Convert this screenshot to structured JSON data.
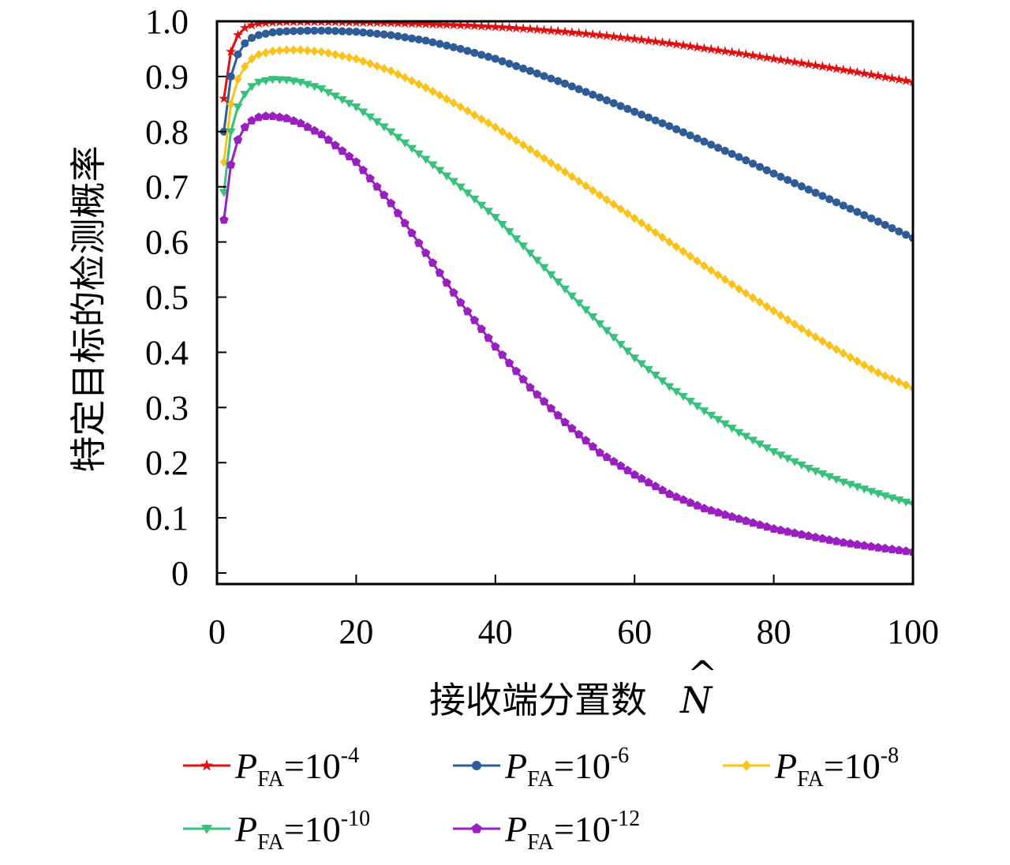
{
  "chart_data": {
    "type": "line",
    "xlabel": "接收端分置数",
    "xlabel_symbol": "N",
    "ylabel": "特定目标的检测概率",
    "xlim": [
      0,
      100
    ],
    "ylim": [
      -0.02,
      1.0
    ],
    "xticks": [
      0,
      20,
      40,
      60,
      80,
      100
    ],
    "xtick_labels": [
      "0",
      "20",
      "40",
      "60",
      "80",
      "100"
    ],
    "yticks": [
      0,
      0.1,
      0.2,
      0.3,
      0.4,
      0.5,
      0.6,
      0.7,
      0.8,
      0.9,
      1.0
    ],
    "ytick_labels": [
      "0",
      "0.1",
      "0.2",
      "0.3",
      "0.4",
      "0.5",
      "0.6",
      "0.7",
      "0.8",
      "0.9",
      "1.0"
    ],
    "legend_position": "bottom",
    "series": [
      {
        "name": "PFA=10-4",
        "label_main": "P",
        "label_sub": "FA",
        "label_eq": "=10",
        "label_exp": "-4",
        "color": "#e01010",
        "marker": "star",
        "x": [
          1,
          2,
          3,
          4,
          5,
          6,
          8,
          10,
          15,
          20,
          25,
          30,
          35,
          40,
          45,
          50,
          55,
          60,
          65,
          70,
          75,
          80,
          85,
          90,
          95,
          100
        ],
        "y": [
          0.86,
          0.945,
          0.975,
          0.988,
          0.993,
          0.996,
          0.998,
          0.999,
          0.999,
          0.998,
          0.997,
          0.995,
          0.993,
          0.99,
          0.986,
          0.981,
          0.975,
          0.968,
          0.96,
          0.951,
          0.942,
          0.932,
          0.922,
          0.912,
          0.901,
          0.89
        ]
      },
      {
        "name": "PFA=10-6",
        "label_main": "P",
        "label_sub": "FA",
        "label_eq": "=10",
        "label_exp": "-6",
        "color": "#2e5c97",
        "marker": "circle",
        "x": [
          1,
          2,
          3,
          4,
          5,
          6,
          8,
          10,
          13,
          16,
          20,
          25,
          30,
          35,
          40,
          45,
          50,
          55,
          60,
          65,
          70,
          75,
          80,
          85,
          90,
          95,
          100
        ],
        "y": [
          0.8,
          0.9,
          0.94,
          0.96,
          0.97,
          0.975,
          0.98,
          0.982,
          0.983,
          0.983,
          0.981,
          0.975,
          0.965,
          0.95,
          0.932,
          0.91,
          0.887,
          0.862,
          0.836,
          0.81,
          0.782,
          0.754,
          0.724,
          0.695,
          0.666,
          0.637,
          0.607
        ]
      },
      {
        "name": "PFA=10-8",
        "label_main": "P",
        "label_sub": "FA",
        "label_eq": "=10",
        "label_exp": "-8",
        "color": "#fbc21a",
        "marker": "diamond",
        "x": [
          1,
          2,
          3,
          4,
          5,
          6,
          8,
          10,
          12,
          15,
          20,
          25,
          30,
          35,
          40,
          45,
          50,
          55,
          60,
          65,
          70,
          75,
          80,
          85,
          90,
          95,
          100
        ],
        "y": [
          0.745,
          0.85,
          0.895,
          0.918,
          0.932,
          0.94,
          0.946,
          0.948,
          0.948,
          0.945,
          0.932,
          0.91,
          0.88,
          0.845,
          0.808,
          0.768,
          0.727,
          0.685,
          0.643,
          0.6,
          0.557,
          0.515,
          0.475,
          0.435,
          0.398,
          0.363,
          0.335
        ]
      },
      {
        "name": "PFA=10-10",
        "label_main": "P",
        "label_sub": "FA",
        "label_eq": "=10",
        "label_exp": "-10",
        "color": "#37c17a",
        "marker": "triangle-down",
        "x": [
          1,
          2,
          3,
          4,
          5,
          6,
          8,
          10,
          12,
          15,
          20,
          25,
          30,
          35,
          40,
          45,
          50,
          55,
          60,
          65,
          70,
          75,
          80,
          85,
          90,
          95,
          100
        ],
        "y": [
          0.69,
          0.8,
          0.845,
          0.868,
          0.882,
          0.89,
          0.895,
          0.894,
          0.89,
          0.878,
          0.845,
          0.8,
          0.75,
          0.7,
          0.645,
          0.58,
          0.515,
          0.452,
          0.39,
          0.338,
          0.294,
          0.255,
          0.22,
          0.19,
          0.165,
          0.144,
          0.125
        ]
      },
      {
        "name": "PFA=10-12",
        "label_main": "P",
        "label_sub": "FA",
        "label_eq": "=10",
        "label_exp": "-12",
        "color": "#9a1fc1",
        "marker": "pentagon",
        "x": [
          1,
          2,
          3,
          4,
          5,
          6,
          7,
          8,
          10,
          12,
          15,
          20,
          25,
          30,
          35,
          40,
          45,
          50,
          55,
          60,
          65,
          70,
          75,
          80,
          85,
          90,
          95,
          100
        ],
        "y": [
          0.64,
          0.74,
          0.785,
          0.808,
          0.82,
          0.826,
          0.828,
          0.828,
          0.824,
          0.815,
          0.795,
          0.745,
          0.67,
          0.58,
          0.49,
          0.41,
          0.336,
          0.273,
          0.218,
          0.178,
          0.143,
          0.117,
          0.098,
          0.08,
          0.067,
          0.055,
          0.046,
          0.038
        ]
      }
    ]
  }
}
